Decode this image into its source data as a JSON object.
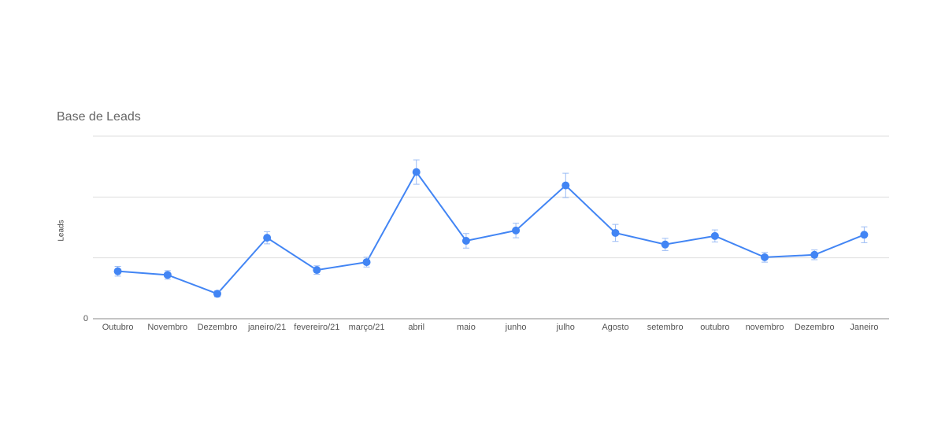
{
  "chart_data": {
    "type": "line",
    "title": "Base de Leads",
    "y_label": "Leads",
    "categories": [
      "Outubro",
      "Novembro",
      "Dezembro",
      "janeiro/21",
      "fevereiro/21",
      "março/21",
      "abril",
      "maio",
      "junho",
      "julho",
      "Agosto",
      "setembro",
      "outubro",
      "novembro",
      "Dezembro",
      "Janeiro"
    ],
    "series": [
      {
        "name": "Leads",
        "color": "#4285f4",
        "values": [
          78,
          72,
          41,
          133,
          80,
          93,
          241,
          128,
          145,
          219,
          141,
          122,
          136,
          101,
          105,
          138
        ],
        "errors": [
          8,
          7,
          5,
          10,
          7,
          8,
          20,
          12,
          12,
          20,
          14,
          10,
          10,
          8,
          8,
          13
        ]
      }
    ],
    "ylim": [
      0,
      300
    ],
    "yticks": [
      0
    ],
    "grid_lines": [
      100,
      200,
      300
    ],
    "grid": true
  }
}
